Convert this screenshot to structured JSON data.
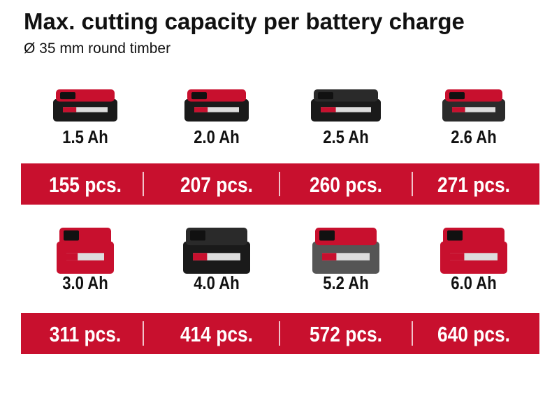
{
  "header": {
    "title": "Max. cutting capacity per battery charge",
    "subtitle": "Ø 35 mm round timber"
  },
  "rows": [
    {
      "batteries": [
        {
          "capacity": "1.5 Ah",
          "pieces": "155 pcs."
        },
        {
          "capacity": "2.0 Ah",
          "pieces": "207 pcs."
        },
        {
          "capacity": "2.5 Ah",
          "pieces": "260 pcs."
        },
        {
          "capacity": "2.6 Ah",
          "pieces": "271 pcs."
        }
      ]
    },
    {
      "batteries": [
        {
          "capacity": "3.0 Ah",
          "pieces": "311 pcs."
        },
        {
          "capacity": "4.0 Ah",
          "pieces": "414 pcs."
        },
        {
          "capacity": "5.2 Ah",
          "pieces": "572 pcs."
        },
        {
          "capacity": "6.0 Ah",
          "pieces": "640 pcs."
        }
      ]
    }
  ]
}
